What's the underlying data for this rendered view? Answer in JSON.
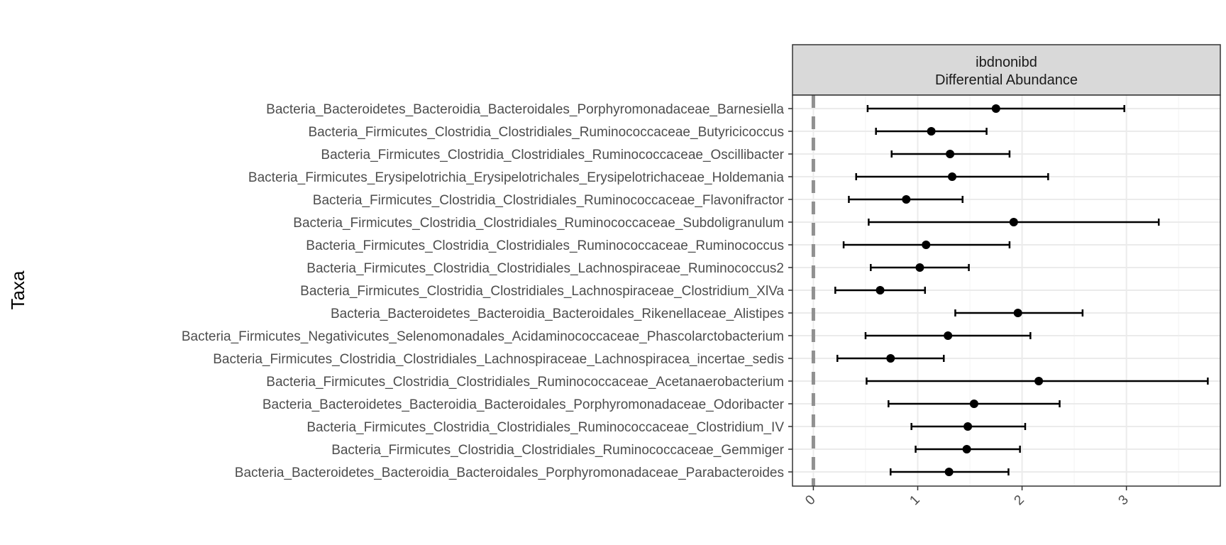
{
  "chart_data": {
    "type": "scatter",
    "subtype": "point-with-errorbars",
    "facet_strip": [
      "ibdnonibd",
      "Differential Abundance"
    ],
    "xlabel": "",
    "ylabel": "Taxa",
    "xlim": [
      -0.2,
      3.9
    ],
    "x_ticks": [
      0,
      1,
      2,
      3
    ],
    "x_tick_labels": [
      "0",
      "1",
      "2",
      "3"
    ],
    "reference_line": 0,
    "grid": true,
    "theme": "bw",
    "colors": {
      "point": "#000000",
      "errorbar": "#000000",
      "reference_line": "#909090",
      "strip_fill": "#d9d9d9",
      "grid_major": "#ebebeb",
      "panel_border": "#333333"
    },
    "taxa": [
      "Bacteria_Bacteroidetes_Bacteroidia_Bacteroidales_Porphyromonadaceae_Barnesiella",
      "Bacteria_Firmicutes_Clostridia_Clostridiales_Ruminococcaceae_Butyricicoccus",
      "Bacteria_Firmicutes_Clostridia_Clostridiales_Ruminococcaceae_Oscillibacter",
      "Bacteria_Firmicutes_Erysipelotrichia_Erysipelotrichales_Erysipelotrichaceae_Holdemania",
      "Bacteria_Firmicutes_Clostridia_Clostridiales_Ruminococcaceae_Flavonifractor",
      "Bacteria_Firmicutes_Clostridia_Clostridiales_Ruminococcaceae_Subdoligranulum",
      "Bacteria_Firmicutes_Clostridia_Clostridiales_Ruminococcaceae_Ruminococcus",
      "Bacteria_Firmicutes_Clostridia_Clostridiales_Lachnospiraceae_Ruminococcus2",
      "Bacteria_Firmicutes_Clostridia_Clostridiales_Lachnospiraceae_Clostridium_XlVa",
      "Bacteria_Bacteroidetes_Bacteroidia_Bacteroidales_Rikenellaceae_Alistipes",
      "Bacteria_Firmicutes_Negativicutes_Selenomonadales_Acidaminococcaceae_Phascolarctobacterium",
      "Bacteria_Firmicutes_Clostridia_Clostridiales_Lachnospiraceae_Lachnospiracea_incertae_sedis",
      "Bacteria_Firmicutes_Clostridia_Clostridiales_Ruminococcaceae_Acetanaerobacterium",
      "Bacteria_Bacteroidetes_Bacteroidia_Bacteroidales_Porphyromonadaceae_Odoribacter",
      "Bacteria_Firmicutes_Clostridia_Clostridiales_Ruminococcaceae_Clostridium_IV",
      "Bacteria_Firmicutes_Clostridia_Clostridiales_Ruminococcaceae_Gemmiger",
      "Bacteria_Bacteroidetes_Bacteroidia_Bacteroidales_Porphyromonadaceae_Parabacteroides"
    ],
    "estimate": [
      1.75,
      1.13,
      1.31,
      1.33,
      0.89,
      1.92,
      1.08,
      1.02,
      0.64,
      1.96,
      1.29,
      0.74,
      2.16,
      1.54,
      1.48,
      1.47,
      1.3
    ],
    "lower": [
      0.52,
      0.6,
      0.75,
      0.41,
      0.34,
      0.53,
      0.29,
      0.55,
      0.21,
      1.36,
      0.5,
      0.23,
      0.51,
      0.72,
      0.94,
      0.98,
      0.74
    ],
    "upper": [
      2.98,
      1.66,
      1.88,
      2.25,
      1.43,
      3.31,
      1.88,
      1.49,
      1.07,
      2.58,
      2.08,
      1.25,
      3.78,
      2.36,
      2.03,
      1.98,
      1.87
    ]
  }
}
